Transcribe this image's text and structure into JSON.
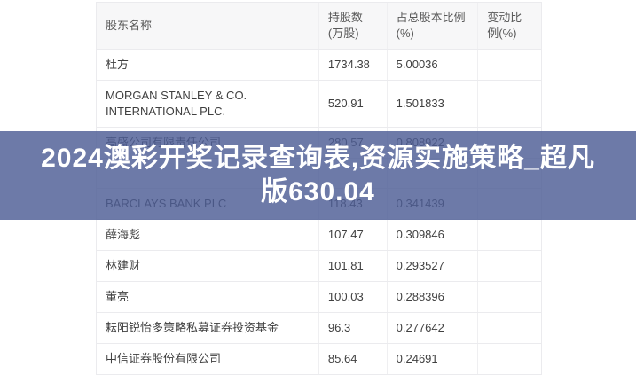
{
  "banner": {
    "lines": [
      "2024澳彩开奖记录查询表,资源实施策略_超凡",
      "版630.04"
    ],
    "background_color": "#4d5d95",
    "text_color": "#ffffff"
  },
  "table": {
    "columns": [
      "股东名称",
      "持股数(万股)",
      "占总股本比例(%)",
      "变动比例(%)"
    ],
    "rows": [
      {
        "name": "杜方",
        "shares": "1734.38",
        "ratio": "5.00036",
        "change": ""
      },
      {
        "name": "MORGAN STANLEY & CO. INTERNATIONAL PLC.",
        "shares": "520.91",
        "ratio": "1.501833",
        "change": ""
      },
      {
        "name": "高盛公司有限责任公司",
        "shares": "280.57",
        "ratio": "0.808922",
        "change": ""
      },
      {
        "name": "",
        "shares": "",
        "ratio": "",
        "change": ""
      },
      {
        "name": "BARCLAYS BANK PLC",
        "shares": "118.43",
        "ratio": "0.341439",
        "change": ""
      },
      {
        "name": "薛海彪",
        "shares": "107.47",
        "ratio": "0.309846",
        "change": ""
      },
      {
        "name": "林建财",
        "shares": "101.81",
        "ratio": "0.293527",
        "change": ""
      },
      {
        "name": "董亮",
        "shares": "100.03",
        "ratio": "0.288396",
        "change": ""
      },
      {
        "name": "耘阳锐怡多策略私募证券投资基金",
        "shares": "96.3",
        "ratio": "0.277642",
        "change": ""
      },
      {
        "name": "中信证券股份有限公司",
        "shares": "85.64",
        "ratio": "0.24691",
        "change": ""
      }
    ]
  }
}
